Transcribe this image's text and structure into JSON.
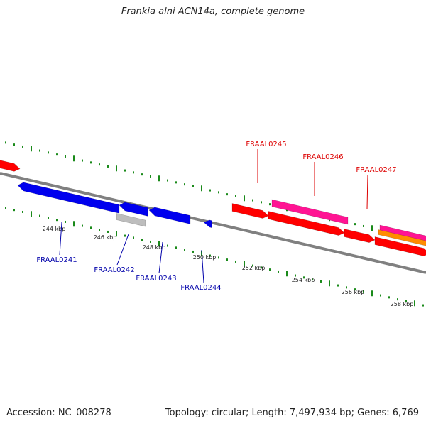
{
  "title": "Frankia alni ACN14a, complete genome",
  "footer": {
    "accession": "Accession: NC_008278",
    "summary": "Topology: circular; Length: 7,497,934 bp; Genes: 6,769"
  },
  "colors": {
    "background": "#ffffff",
    "backbone": "#808080",
    "tick_dot": "#1a8a1a",
    "forward_gene": "#ff0000",
    "reverse_gene": "#0000ee",
    "pink_gene": "#ff1493",
    "orange_gene": "#ff8c00",
    "grey_gene": "#bdbdbd",
    "label_forward": "#dd0000",
    "label_reverse": "#0000aa"
  },
  "scale_labels": [
    "244 kbp",
    "246 kbp",
    "248 kbp",
    "250 kbp",
    "252 kbp",
    "254 kbp",
    "256 kbp",
    "258 kbp"
  ],
  "genes_labeled": {
    "forward": [
      "FRAAL0245",
      "FRAAL0246",
      "FRAAL0247"
    ],
    "reverse": [
      "FRAAL0241",
      "FRAAL0242",
      "FRAAL0243",
      "FRAAL0244"
    ]
  }
}
